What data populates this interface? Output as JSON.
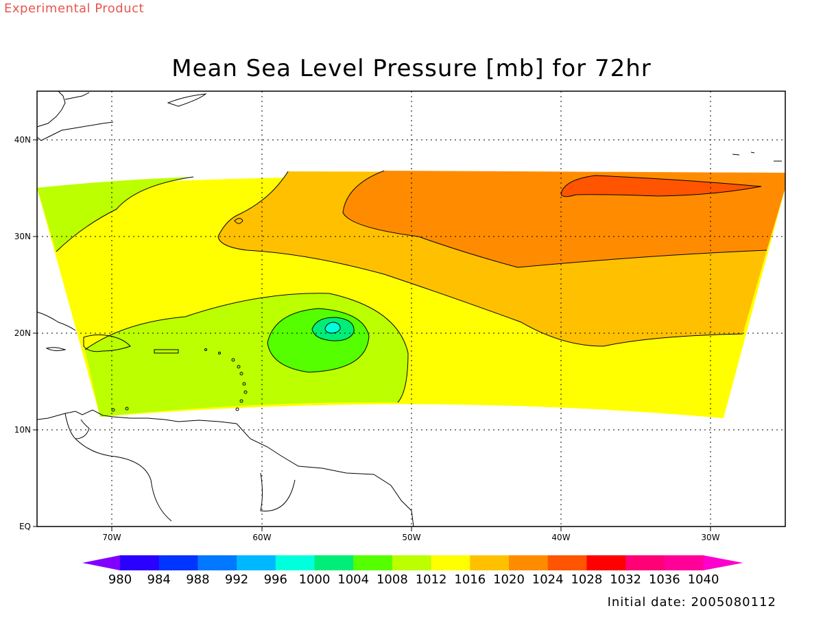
{
  "header": {
    "product_label": "Experimental Product",
    "title": "Mean Sea Level Pressure [mb] for 72hr"
  },
  "footer": {
    "initial_date": "Initial date: 2005080112"
  },
  "map": {
    "lon_ticks": [
      "70W",
      "60W",
      "50W",
      "40W",
      "30W"
    ],
    "lat_ticks": [
      "40N",
      "30N",
      "20N",
      "10N",
      "EQ"
    ],
    "field_colors": {
      "c1008": "#bbff00",
      "c1012": "#ffff00",
      "c1016": "#ffc000",
      "c1020": "#ff8c00",
      "c1024": "#ff5500",
      "c1004": "#55ff00",
      "c1000": "#00ee77",
      "c996": "#00ffdd"
    }
  },
  "colorbar": {
    "levels": [
      "980",
      "984",
      "988",
      "992",
      "996",
      "1000",
      "1004",
      "1008",
      "1012",
      "1016",
      "1020",
      "1024",
      "1028",
      "1032",
      "1036",
      "1040"
    ],
    "colors": [
      "#8000ff",
      "#2a00ff",
      "#0035ff",
      "#0078ff",
      "#00b8ff",
      "#00ffdd",
      "#00ee77",
      "#55ff00",
      "#bbff00",
      "#ffff00",
      "#ffc000",
      "#ff8c00",
      "#ff5500",
      "#ff0000",
      "#ff0077",
      "#ff0099",
      "#ff00cc"
    ]
  }
}
